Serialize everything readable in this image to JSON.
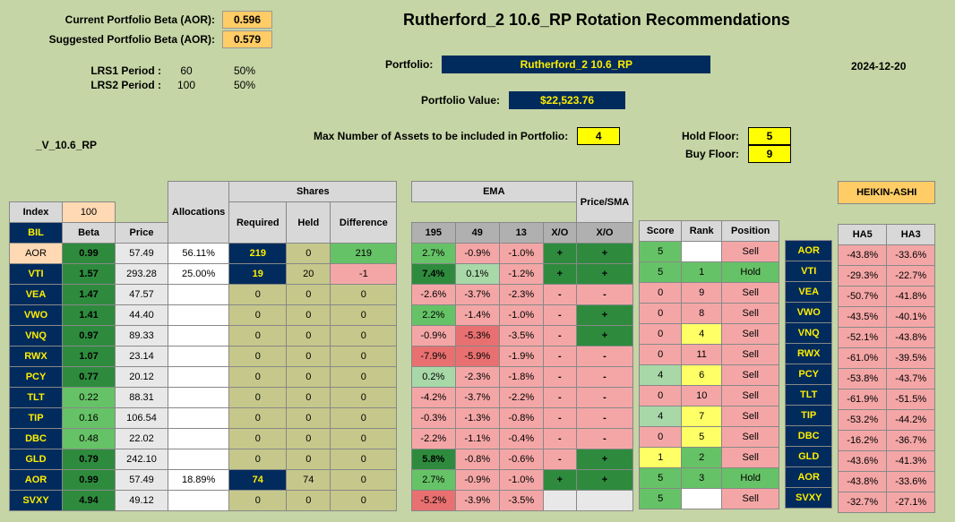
{
  "title": "Rutherford_2 10.6_RP Rotation Recommendations",
  "date": "2024-12-20",
  "beta_current_label": "Current Portfolio Beta (AOR):",
  "beta_current": "0.596",
  "beta_suggested_label": "Suggested Portfolio Beta (AOR):",
  "beta_suggested": "0.579",
  "lrs1_label": "LRS1 Period :",
  "lrs1_p": "60",
  "lrs1_w": "50%",
  "lrs2_label": "LRS2 Period :",
  "lrs2_p": "100",
  "lrs2_w": "50%",
  "portfolio_label": "Portfolio:",
  "portfolio_name": "Rutherford_2 10.6_RP",
  "portfolio_value_label": "Portfolio Value:",
  "portfolio_value": "$22,523.76",
  "max_assets_label": "Max Number of Assets to be included in Portfolio:",
  "max_assets": "4",
  "hold_floor_label": "Hold Floor:",
  "hold_floor": "5",
  "buy_floor_label": "Buy Floor:",
  "buy_floor": "9",
  "v_label": "_V_10.6_RP",
  "index_label": "Index",
  "index_val": "100",
  "bil": "BIL",
  "beta_hdr": "Beta",
  "price_hdr": "Price",
  "alloc_hdr": "Allocations",
  "shares_hdr": "Shares",
  "req_hdr": "Required",
  "held_hdr": "Held",
  "diff_hdr": "Difference",
  "ema_hdr": "EMA",
  "ema195": "195",
  "ema49": "49",
  "ema13": "13",
  "xo_hdr": "X/O",
  "psma_hdr": "Price/SMA",
  "score_hdr": "Score",
  "rank_hdr": "Rank",
  "position_hdr": "Position",
  "heikin_hdr": "HEIKIN-ASHI",
  "ha5_hdr": "HA5",
  "ha3_hdr": "HA3",
  "rows": [
    {
      "t": "AOR",
      "beta": "0.99",
      "price": "57.49",
      "alloc": "56.11%",
      "req": "219",
      "held": "0",
      "diff": "219",
      "e195": "2.7%",
      "e49": "-0.9%",
      "e13": "-1.0%",
      "xo1": "+",
      "xo2": "+",
      "score": "5",
      "rank": "",
      "pos": "Sell",
      "ha5": "-43.8%",
      "ha3": "-33.6%",
      "c": {
        "t": "peach",
        "beta": "green-d",
        "price": "gray-l",
        "alloc": "white",
        "req": "navy",
        "held": "olive",
        "diff": "green-m",
        "e195": "green-m",
        "e49": "red-l",
        "e13": "red-l",
        "xo1": "green-d",
        "xo2": "green-d",
        "score": "green-m",
        "rank": "white",
        "pos": "red-l",
        "ha5": "red-l",
        "ha3": "red-l"
      }
    },
    {
      "t": "VTI",
      "beta": "1.57",
      "price": "293.28",
      "alloc": "25.00%",
      "req": "19",
      "held": "20",
      "diff": "-1",
      "e195": "7.4%",
      "e49": "0.1%",
      "e13": "-1.2%",
      "xo1": "+",
      "xo2": "+",
      "score": "5",
      "rank": "1",
      "pos": "Hold",
      "ha5": "-29.3%",
      "ha3": "-22.7%",
      "c": {
        "t": "navy",
        "beta": "green-d",
        "price": "gray-l",
        "alloc": "white",
        "req": "navy",
        "held": "olive",
        "diff": "red-l",
        "e195": "green-d",
        "e49": "green-l",
        "e13": "red-l",
        "xo1": "green-d",
        "xo2": "green-d",
        "score": "green-m",
        "rank": "green-m",
        "pos": "green-m",
        "ha5": "red-l",
        "ha3": "red-l"
      }
    },
    {
      "t": "VEA",
      "beta": "1.47",
      "price": "47.57",
      "alloc": "",
      "req": "0",
      "held": "0",
      "diff": "0",
      "e195": "-2.6%",
      "e49": "-3.7%",
      "e13": "-2.3%",
      "xo1": "-",
      "xo2": "-",
      "score": "0",
      "rank": "9",
      "pos": "Sell",
      "ha5": "-50.7%",
      "ha3": "-41.8%",
      "c": {
        "t": "navy",
        "beta": "green-d",
        "price": "gray-l",
        "alloc": "white",
        "req": "olive",
        "held": "olive",
        "diff": "olive",
        "e195": "red-l",
        "e49": "red-l",
        "e13": "red-l",
        "xo1": "red-l",
        "xo2": "red-l",
        "score": "red-l",
        "rank": "red-l",
        "pos": "red-l",
        "ha5": "red-l",
        "ha3": "red-l"
      }
    },
    {
      "t": "VWO",
      "beta": "1.41",
      "price": "44.40",
      "alloc": "",
      "req": "0",
      "held": "0",
      "diff": "0",
      "e195": "2.2%",
      "e49": "-1.4%",
      "e13": "-1.0%",
      "xo1": "-",
      "xo2": "+",
      "score": "0",
      "rank": "8",
      "pos": "Sell",
      "ha5": "-43.5%",
      "ha3": "-40.1%",
      "c": {
        "t": "navy",
        "beta": "green-d",
        "price": "gray-l",
        "alloc": "white",
        "req": "olive",
        "held": "olive",
        "diff": "olive",
        "e195": "green-m",
        "e49": "red-l",
        "e13": "red-l",
        "xo1": "red-l",
        "xo2": "green-d",
        "score": "red-l",
        "rank": "red-l",
        "pos": "red-l",
        "ha5": "red-l",
        "ha3": "red-l"
      }
    },
    {
      "t": "VNQ",
      "beta": "0.97",
      "price": "89.33",
      "alloc": "",
      "req": "0",
      "held": "0",
      "diff": "0",
      "e195": "-0.9%",
      "e49": "-5.3%",
      "e13": "-3.5%",
      "xo1": "-",
      "xo2": "+",
      "score": "0",
      "rank": "4",
      "pos": "Sell",
      "ha5": "-52.1%",
      "ha3": "-43.8%",
      "c": {
        "t": "navy",
        "beta": "green-d",
        "price": "gray-l",
        "alloc": "white",
        "req": "olive",
        "held": "olive",
        "diff": "olive",
        "e195": "red-l",
        "e49": "red-m",
        "e13": "red-l",
        "xo1": "red-l",
        "xo2": "green-d",
        "score": "red-l",
        "rank": "yellow",
        "pos": "red-l",
        "ha5": "red-l",
        "ha3": "red-l"
      }
    },
    {
      "t": "RWX",
      "beta": "1.07",
      "price": "23.14",
      "alloc": "",
      "req": "0",
      "held": "0",
      "diff": "0",
      "e195": "-7.9%",
      "e49": "-5.9%",
      "e13": "-1.9%",
      "xo1": "-",
      "xo2": "-",
      "score": "0",
      "rank": "11",
      "pos": "Sell",
      "ha5": "-61.0%",
      "ha3": "-39.5%",
      "c": {
        "t": "navy",
        "beta": "green-d",
        "price": "gray-l",
        "alloc": "white",
        "req": "olive",
        "held": "olive",
        "diff": "olive",
        "e195": "red-m",
        "e49": "red-m",
        "e13": "red-l",
        "xo1": "red-l",
        "xo2": "red-l",
        "score": "red-l",
        "rank": "red-l",
        "pos": "red-l",
        "ha5": "red-l",
        "ha3": "red-l"
      }
    },
    {
      "t": "PCY",
      "beta": "0.77",
      "price": "20.12",
      "alloc": "",
      "req": "0",
      "held": "0",
      "diff": "0",
      "e195": "0.2%",
      "e49": "-2.3%",
      "e13": "-1.8%",
      "xo1": "-",
      "xo2": "-",
      "score": "4",
      "rank": "6",
      "pos": "Sell",
      "ha5": "-53.8%",
      "ha3": "-43.7%",
      "c": {
        "t": "navy",
        "beta": "green-d",
        "price": "gray-l",
        "alloc": "white",
        "req": "olive",
        "held": "olive",
        "diff": "olive",
        "e195": "green-l",
        "e49": "red-l",
        "e13": "red-l",
        "xo1": "red-l",
        "xo2": "red-l",
        "score": "green-l",
        "rank": "yellow",
        "pos": "red-l",
        "ha5": "red-l",
        "ha3": "red-l"
      }
    },
    {
      "t": "TLT",
      "beta": "0.22",
      "price": "88.31",
      "alloc": "",
      "req": "0",
      "held": "0",
      "diff": "0",
      "e195": "-4.2%",
      "e49": "-3.7%",
      "e13": "-2.2%",
      "xo1": "-",
      "xo2": "-",
      "score": "0",
      "rank": "10",
      "pos": "Sell",
      "ha5": "-61.9%",
      "ha3": "-51.5%",
      "c": {
        "t": "navy",
        "beta": "green-m",
        "price": "gray-l",
        "alloc": "white",
        "req": "olive",
        "held": "olive",
        "diff": "olive",
        "e195": "red-l",
        "e49": "red-l",
        "e13": "red-l",
        "xo1": "red-l",
        "xo2": "red-l",
        "score": "red-l",
        "rank": "red-l",
        "pos": "red-l",
        "ha5": "red-l",
        "ha3": "red-l"
      }
    },
    {
      "t": "TIP",
      "beta": "0.16",
      "price": "106.54",
      "alloc": "",
      "req": "0",
      "held": "0",
      "diff": "0",
      "e195": "-0.3%",
      "e49": "-1.3%",
      "e13": "-0.8%",
      "xo1": "-",
      "xo2": "-",
      "score": "4",
      "rank": "7",
      "pos": "Sell",
      "ha5": "-53.2%",
      "ha3": "-44.2%",
      "c": {
        "t": "navy",
        "beta": "green-m",
        "price": "gray-l",
        "alloc": "white",
        "req": "olive",
        "held": "olive",
        "diff": "olive",
        "e195": "red-l",
        "e49": "red-l",
        "e13": "red-l",
        "xo1": "red-l",
        "xo2": "red-l",
        "score": "green-l",
        "rank": "yellow",
        "pos": "red-l",
        "ha5": "red-l",
        "ha3": "red-l"
      }
    },
    {
      "t": "DBC",
      "beta": "0.48",
      "price": "22.02",
      "alloc": "",
      "req": "0",
      "held": "0",
      "diff": "0",
      "e195": "-2.2%",
      "e49": "-1.1%",
      "e13": "-0.4%",
      "xo1": "-",
      "xo2": "-",
      "score": "0",
      "rank": "5",
      "pos": "Sell",
      "ha5": "-16.2%",
      "ha3": "-36.7%",
      "c": {
        "t": "navy",
        "beta": "green-m",
        "price": "gray-l",
        "alloc": "white",
        "req": "olive",
        "held": "olive",
        "diff": "olive",
        "e195": "red-l",
        "e49": "red-l",
        "e13": "red-l",
        "xo1": "red-l",
        "xo2": "red-l",
        "score": "red-l",
        "rank": "yellow",
        "pos": "red-l",
        "ha5": "red-l",
        "ha3": "red-l"
      }
    },
    {
      "t": "GLD",
      "beta": "0.79",
      "price": "242.10",
      "alloc": "",
      "req": "0",
      "held": "0",
      "diff": "0",
      "e195": "5.8%",
      "e49": "-0.8%",
      "e13": "-0.6%",
      "xo1": "-",
      "xo2": "+",
      "score": "1",
      "rank": "2",
      "pos": "Sell",
      "ha5": "-43.6%",
      "ha3": "-41.3%",
      "c": {
        "t": "navy",
        "beta": "green-d",
        "price": "gray-l",
        "alloc": "white",
        "req": "olive",
        "held": "olive",
        "diff": "olive",
        "e195": "green-d",
        "e49": "red-l",
        "e13": "red-l",
        "xo1": "red-l",
        "xo2": "green-d",
        "score": "yellow",
        "rank": "green-m",
        "pos": "red-l",
        "ha5": "red-l",
        "ha3": "red-l"
      }
    },
    {
      "t": "AOR",
      "beta": "0.99",
      "price": "57.49",
      "alloc": "18.89%",
      "req": "74",
      "held": "74",
      "diff": "0",
      "e195": "2.7%",
      "e49": "-0.9%",
      "e13": "-1.0%",
      "xo1": "+",
      "xo2": "+",
      "score": "5",
      "rank": "3",
      "pos": "Hold",
      "ha5": "-43.8%",
      "ha3": "-33.6%",
      "c": {
        "t": "navy",
        "beta": "green-d",
        "price": "gray-l",
        "alloc": "white",
        "req": "navy",
        "held": "olive",
        "diff": "olive",
        "e195": "green-m",
        "e49": "red-l",
        "e13": "red-l",
        "xo1": "green-d",
        "xo2": "green-d",
        "score": "green-m",
        "rank": "green-m",
        "pos": "green-m",
        "ha5": "red-l",
        "ha3": "red-l"
      }
    },
    {
      "t": "SVXY",
      "beta": "4.94",
      "price": "49.12",
      "alloc": "",
      "req": "0",
      "held": "0",
      "diff": "0",
      "e195": "-5.2%",
      "e49": "-3.9%",
      "e13": "-3.5%",
      "xo1": "",
      "xo2": "",
      "score": "5",
      "rank": "",
      "pos": "Sell",
      "ha5": "-32.7%",
      "ha3": "-27.1%",
      "c": {
        "t": "navy",
        "beta": "green-d",
        "price": "gray-l",
        "alloc": "white",
        "req": "olive",
        "held": "olive",
        "diff": "olive",
        "e195": "red-m",
        "e49": "red-l",
        "e13": "red-l",
        "xo1": "gray-l",
        "xo2": "gray-l",
        "score": "green-m",
        "rank": "white",
        "pos": "red-l",
        "ha5": "red-l",
        "ha3": "red-l"
      }
    }
  ]
}
